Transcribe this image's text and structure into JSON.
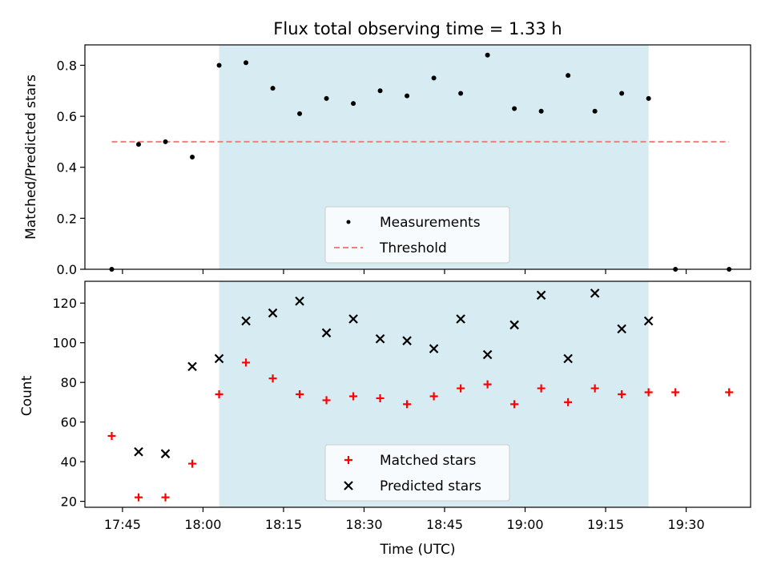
{
  "chart_data": [
    {
      "type": "scatter",
      "title": "Flux total observing time = 1.33 h",
      "xlabel": "",
      "ylabel": "Matched/Predicted stars",
      "ylim": [
        0,
        0.88
      ],
      "yticks": [
        0.0,
        0.2,
        0.4,
        0.6,
        0.8
      ],
      "ytick_labels": [
        "0.0",
        "0.2",
        "0.4",
        "0.6",
        "0.8"
      ],
      "shade": {
        "x_start": "18:03",
        "x_end": "19:23",
        "color": "#add8e6"
      },
      "series": [
        {
          "name": "Measurements",
          "marker": "dot",
          "color": "#000000",
          "x": [
            "17:43",
            "17:48",
            "17:53",
            "17:58",
            "18:03",
            "18:08",
            "18:13",
            "18:18",
            "18:23",
            "18:28",
            "18:33",
            "18:38",
            "18:43",
            "18:48",
            "18:53",
            "18:58",
            "19:03",
            "19:08",
            "19:13",
            "19:18",
            "19:23",
            "19:28",
            "19:38"
          ],
          "y": [
            0.0,
            0.49,
            0.5,
            0.44,
            0.8,
            0.81,
            0.71,
            0.61,
            0.67,
            0.65,
            0.7,
            0.68,
            0.75,
            0.69,
            0.84,
            0.63,
            0.62,
            0.76,
            0.62,
            0.69,
            0.67,
            0.0,
            0.0
          ]
        },
        {
          "name": "Threshold",
          "marker": "dashed-line",
          "color": "#f08080",
          "x": [
            "17:43",
            "19:38"
          ],
          "y": [
            0.5,
            0.5
          ]
        }
      ],
      "legend": {
        "placement": "lower-center"
      }
    },
    {
      "type": "scatter",
      "title": "",
      "xlabel": "Time (UTC)",
      "ylabel": "Count",
      "ylim": [
        17,
        131
      ],
      "yticks": [
        20,
        40,
        60,
        80,
        100,
        120
      ],
      "ytick_labels": [
        "20",
        "40",
        "60",
        "80",
        "100",
        "120"
      ],
      "xlim": [
        "17:38",
        "19:42"
      ],
      "xticks": [
        "17:45",
        "18:00",
        "18:15",
        "18:30",
        "18:45",
        "19:00",
        "19:15",
        "19:30"
      ],
      "xtick_labels": [
        "17:45",
        "18:00",
        "18:15",
        "18:30",
        "18:45",
        "19:00",
        "19:15",
        "19:30"
      ],
      "shade": {
        "x_start": "18:03",
        "x_end": "19:23",
        "color": "#add8e6"
      },
      "series": [
        {
          "name": "Matched stars",
          "marker": "plus",
          "color": "#ff0000",
          "x": [
            "17:43",
            "17:48",
            "17:53",
            "17:58",
            "18:03",
            "18:08",
            "18:13",
            "18:18",
            "18:23",
            "18:28",
            "18:33",
            "18:38",
            "18:43",
            "18:48",
            "18:53",
            "18:58",
            "19:03",
            "19:08",
            "19:13",
            "19:18",
            "19:23",
            "19:28",
            "19:38"
          ],
          "y": [
            53,
            22,
            22,
            39,
            74,
            90,
            82,
            74,
            71,
            73,
            72,
            69,
            73,
            77,
            79,
            69,
            77,
            70,
            77,
            74,
            75,
            75,
            75
          ]
        },
        {
          "name": "Predicted stars",
          "marker": "x",
          "color": "#000000",
          "x": [
            "17:48",
            "17:53",
            "17:58",
            "18:03",
            "18:08",
            "18:13",
            "18:18",
            "18:23",
            "18:28",
            "18:33",
            "18:38",
            "18:43",
            "18:48",
            "18:53",
            "18:58",
            "19:03",
            "19:08",
            "19:13",
            "19:18",
            "19:23"
          ],
          "y": [
            45,
            44,
            88,
            92,
            111,
            115,
            121,
            105,
            112,
            102,
            101,
            97,
            112,
            94,
            109,
            124,
            92,
            125,
            107,
            111
          ]
        }
      ],
      "legend": {
        "placement": "lower-center"
      }
    }
  ]
}
